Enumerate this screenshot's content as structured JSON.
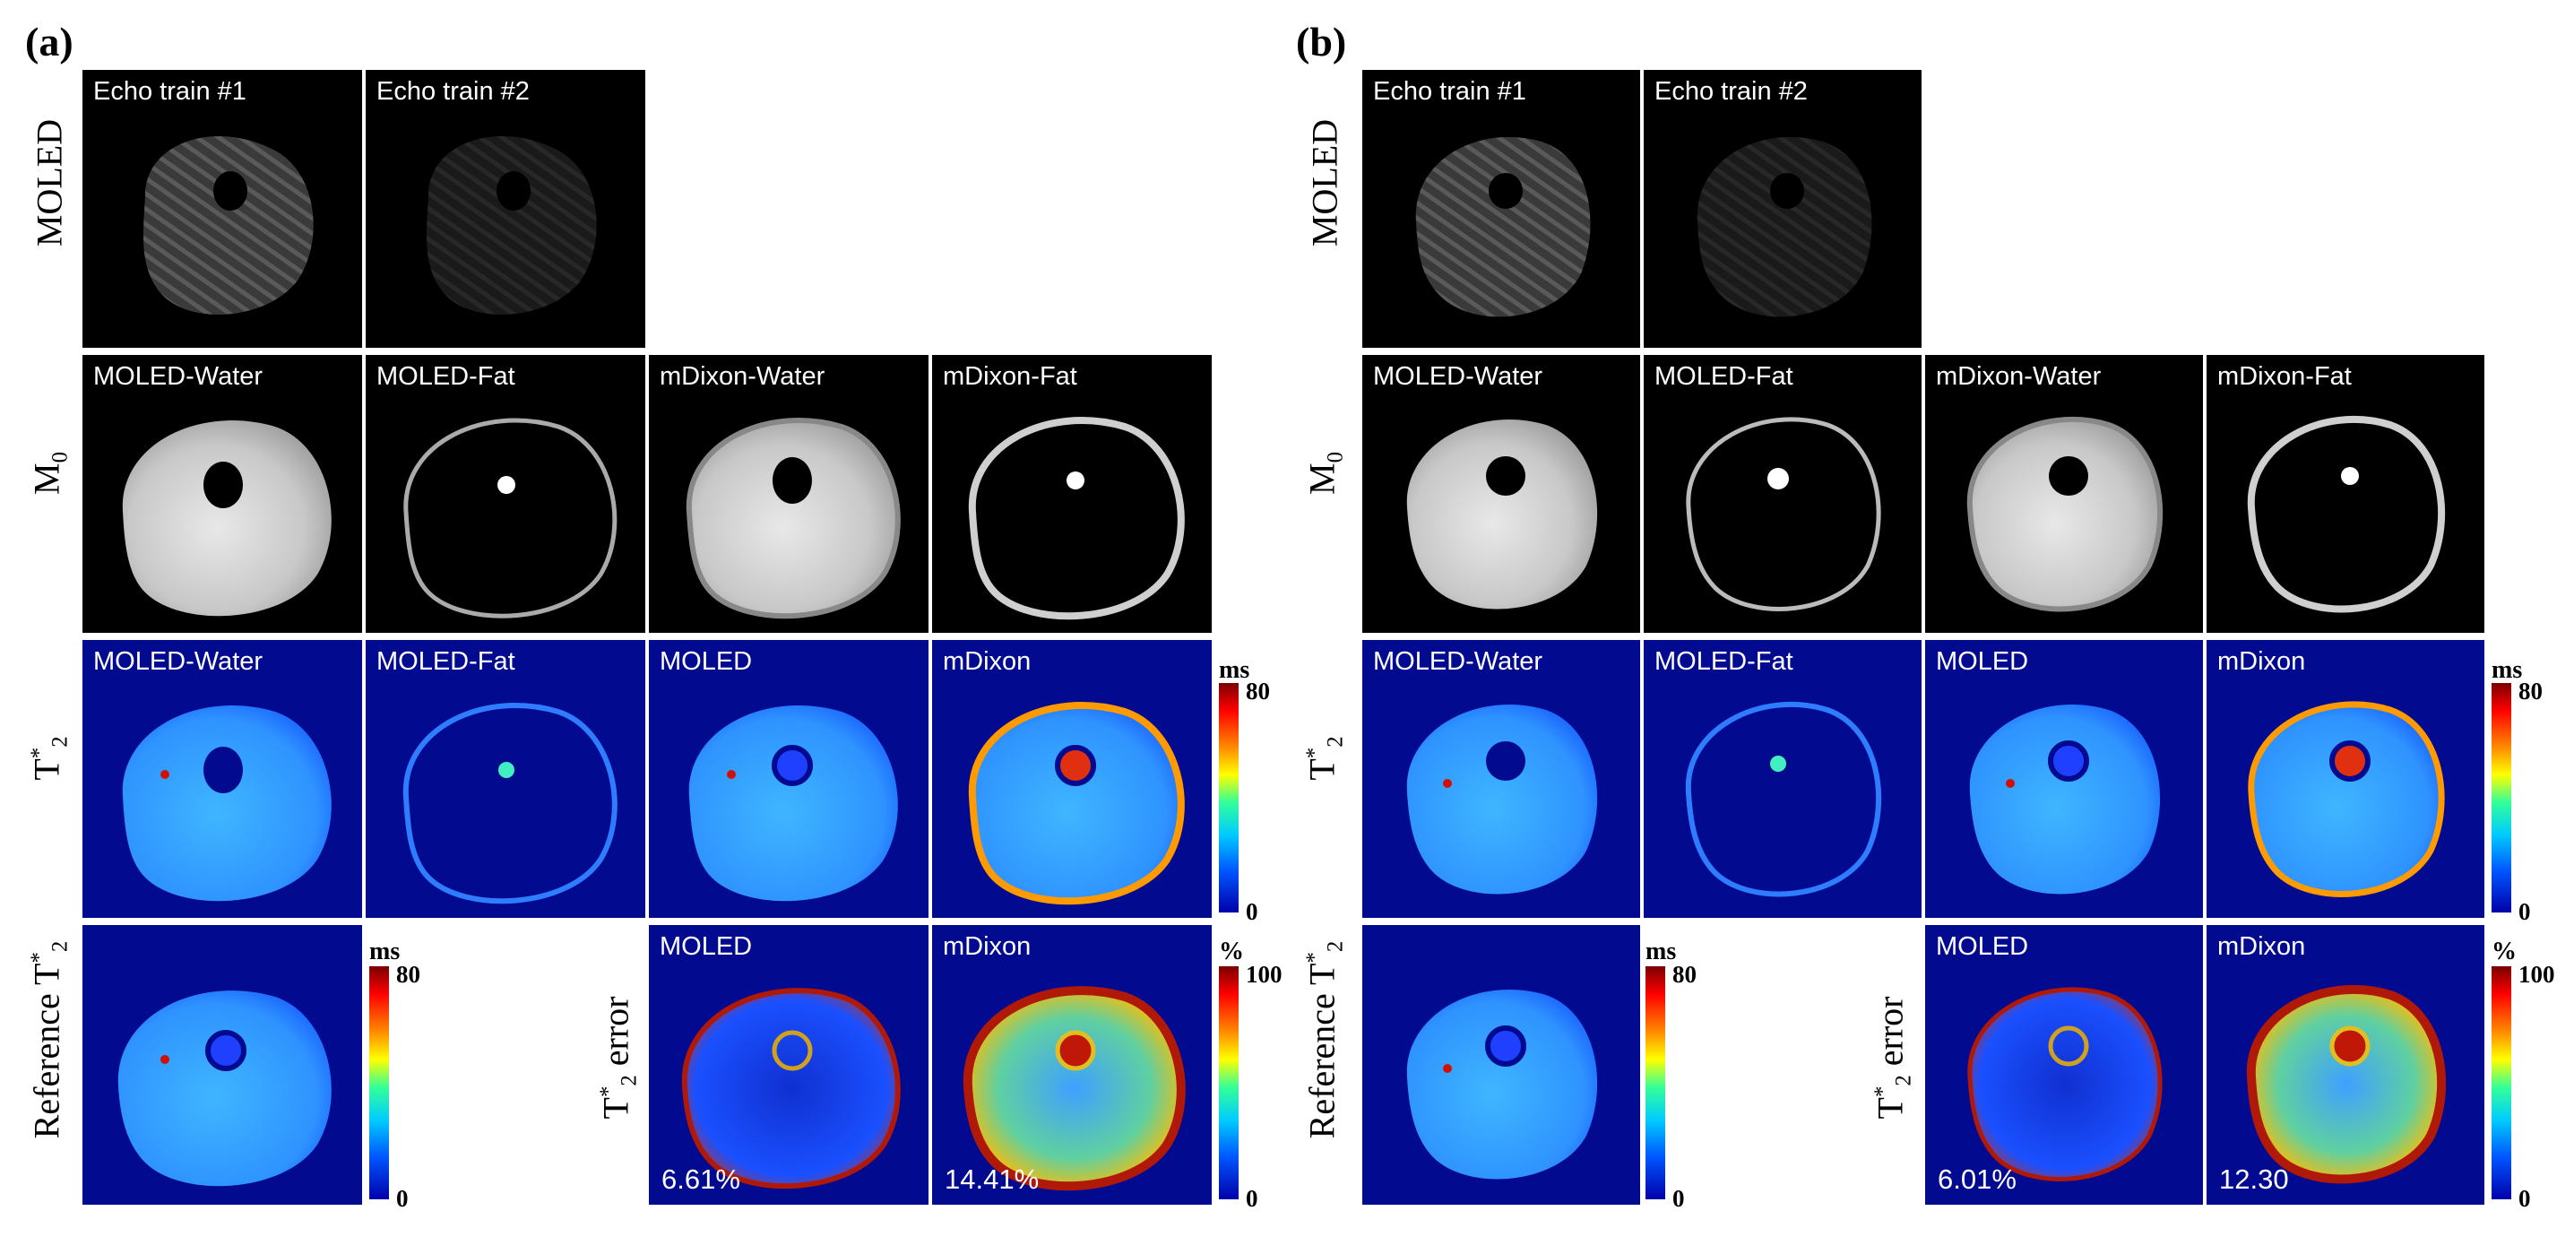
{
  "figure": {
    "panel_a": {
      "letter": "(a)",
      "row_moled": {
        "label": "MOLED",
        "tiles": [
          "Echo train #1",
          "Echo train #2"
        ]
      },
      "row_m0": {
        "label": "M",
        "label_sub": "0",
        "tiles": [
          "MOLED-Water",
          "MOLED-Fat",
          "mDixon-Water",
          "mDixon-Fat"
        ]
      },
      "row_t2": {
        "label": "T",
        "label_sup": "*",
        "label_sub": "2",
        "tiles": [
          "MOLED-Water",
          "MOLED-Fat",
          "MOLED",
          "mDixon"
        ],
        "colorbar": {
          "unit": "ms",
          "max": "80",
          "min": "0"
        }
      },
      "row_ref": {
        "label": "Reference  T",
        "label_sup": "*",
        "label_sub": "2",
        "colorbar": {
          "unit": "ms",
          "max": "80",
          "min": "0"
        },
        "error_label": "T",
        "error_label_sup": "*",
        "error_label_sub": "2",
        "error_label_tail": " error",
        "error_tiles": [
          {
            "title": "MOLED",
            "value": "6.61%"
          },
          {
            "title": "mDixon",
            "value": "14.41%"
          }
        ],
        "error_colorbar": {
          "unit": "%",
          "max": "100",
          "min": "0"
        }
      }
    },
    "panel_b": {
      "letter": "(b)",
      "row_moled": {
        "label": "MOLED",
        "tiles": [
          "Echo train #1",
          "Echo train #2"
        ]
      },
      "row_m0": {
        "label": "M",
        "label_sub": "0",
        "tiles": [
          "MOLED-Water",
          "MOLED-Fat",
          "mDixon-Water",
          "mDixon-Fat"
        ]
      },
      "row_t2": {
        "label": "T",
        "label_sup": "*",
        "label_sub": "2",
        "tiles": [
          "MOLED-Water",
          "MOLED-Fat",
          "MOLED",
          "mDixon"
        ],
        "colorbar": {
          "unit": "ms",
          "max": "80",
          "min": "0"
        }
      },
      "row_ref": {
        "label": "Reference  T",
        "label_sup": "*",
        "label_sub": "2",
        "colorbar": {
          "unit": "ms",
          "max": "80",
          "min": "0"
        },
        "error_label": "T",
        "error_label_sup": "*",
        "error_label_sub": "2",
        "error_label_tail": " error",
        "error_tiles": [
          {
            "title": "MOLED",
            "value": "6.01%"
          },
          {
            "title": "mDixon",
            "value": "12.30"
          }
        ],
        "error_colorbar": {
          "unit": "%",
          "max": "100",
          "min": "0"
        }
      }
    }
  },
  "colors": {
    "map_background": "#020a8f",
    "magnitude_background": "#000000",
    "colormap": "jet"
  }
}
